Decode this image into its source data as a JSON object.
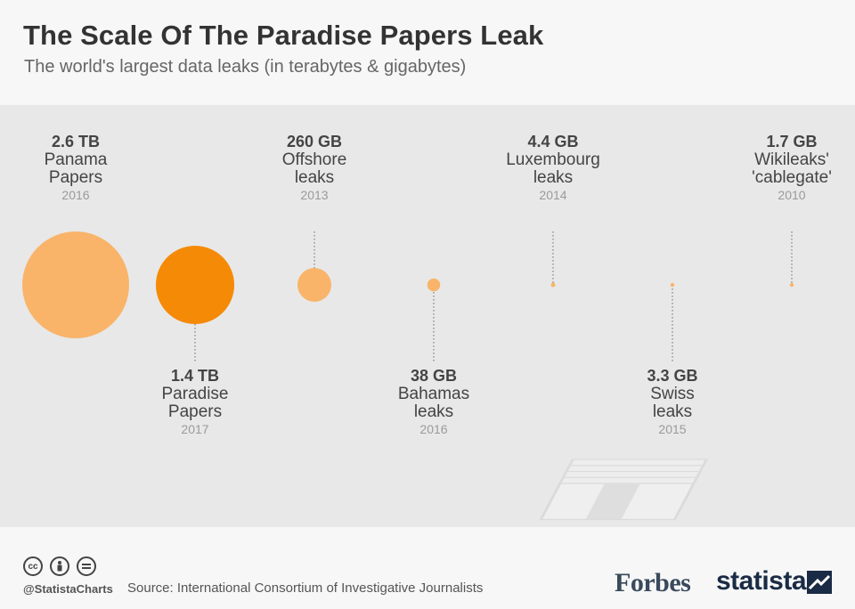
{
  "header": {
    "title": "The Scale Of The Paradise Papers Leak",
    "subtitle": "The world's largest data leaks (in terabytes & gigabytes)"
  },
  "footer": {
    "handle": "@StatistaCharts",
    "source": "Source: International Consortium of Investigative Journalists",
    "forbes_logo": "Forbes",
    "statista_logo": "statista",
    "license_icons": [
      "cc-icon",
      "attribution-icon",
      "no-derivatives-icon"
    ]
  },
  "colors": {
    "default_bubble": "#f9b46a",
    "highlight_bubble": "#f58a07",
    "background": "#e8e8e8"
  },
  "chart_data": {
    "type": "bubble",
    "unit_note": "size in gigabytes",
    "items": [
      {
        "value_label": "2.6 TB",
        "name": [
          "Panama",
          "Papers"
        ],
        "year": "2016",
        "size_gb": 2600,
        "highlight": false,
        "label_position": "top"
      },
      {
        "value_label": "1.4 TB",
        "name": [
          "Paradise",
          "Papers"
        ],
        "year": "2017",
        "size_gb": 1400,
        "highlight": true,
        "label_position": "bottom"
      },
      {
        "value_label": "260 GB",
        "name": [
          "Offshore",
          "leaks"
        ],
        "year": "2013",
        "size_gb": 260,
        "highlight": false,
        "label_position": "top"
      },
      {
        "value_label": "38 GB",
        "name": [
          "Bahamas",
          "leaks"
        ],
        "year": "2016",
        "size_gb": 38,
        "highlight": false,
        "label_position": "bottom"
      },
      {
        "value_label": "4.4 GB",
        "name": [
          "Luxembourg",
          "leaks"
        ],
        "year": "2014",
        "size_gb": 4.4,
        "highlight": false,
        "label_position": "top"
      },
      {
        "value_label": "3.3 GB",
        "name": [
          "Swiss",
          "leaks"
        ],
        "year": "2015",
        "size_gb": 3.3,
        "highlight": false,
        "label_position": "bottom"
      },
      {
        "value_label": "1.7 GB",
        "name": [
          "Wikileaks'",
          "'cablegate'"
        ],
        "year": "2010",
        "size_gb": 1.7,
        "highlight": false,
        "label_position": "top"
      }
    ]
  }
}
